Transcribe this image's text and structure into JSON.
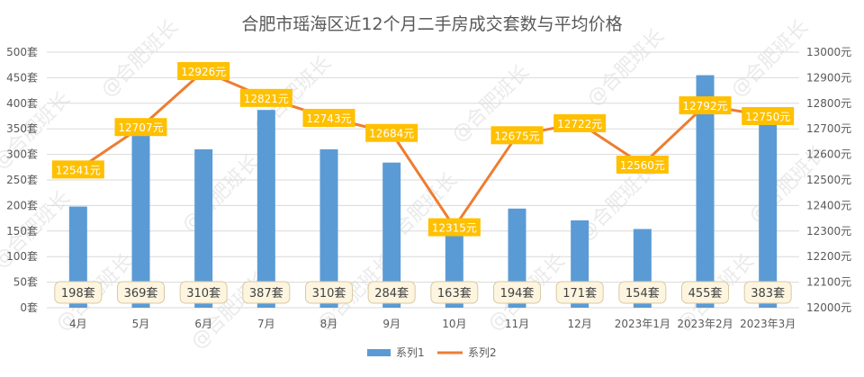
{
  "chart_data": {
    "type": "bar",
    "title": "合肥市瑶海区近12个月二手房成交套数与平均价格",
    "categories": [
      "4月",
      "5月",
      "6月",
      "7月",
      "8月",
      "9月",
      "10月",
      "11月",
      "12月",
      "2023年1月",
      "2023年2月",
      "2023年3月"
    ],
    "series": [
      {
        "name": "系列1",
        "type": "bar",
        "axis": "left",
        "color": "#5b9bd5",
        "values": [
          198,
          369,
          310,
          387,
          310,
          284,
          163,
          194,
          171,
          154,
          455,
          383
        ],
        "labels": [
          "198套",
          "369套",
          "310套",
          "387套",
          "310套",
          "284套",
          "163套",
          "194套",
          "171套",
          "154套",
          "455套",
          "383套"
        ]
      },
      {
        "name": "系列2",
        "type": "line",
        "axis": "right",
        "color": "#ed7d31",
        "values": [
          12541,
          12707,
          12926,
          12821,
          12743,
          12684,
          12315,
          12675,
          12722,
          12560,
          12792,
          12750
        ],
        "labels": [
          "12541元",
          "12707元",
          "12926元",
          "12821元",
          "12743元",
          "12684元",
          "12315元",
          "12675元",
          "12722元",
          "12560元",
          "12792元",
          "12750元"
        ]
      }
    ],
    "y_left": {
      "range": [
        0,
        500
      ],
      "ticks": [
        0,
        50,
        100,
        150,
        200,
        250,
        300,
        350,
        400,
        450,
        500
      ],
      "tick_labels": [
        "0套",
        "50套",
        "100套",
        "150套",
        "200套",
        "250套",
        "300套",
        "350套",
        "400套",
        "450套",
        "500套"
      ]
    },
    "y_right": {
      "range": [
        12000,
        13000
      ],
      "ticks": [
        12000,
        12100,
        12200,
        12300,
        12400,
        12500,
        12600,
        12700,
        12800,
        12900,
        13000
      ],
      "tick_labels": [
        "12000元",
        "12100元",
        "12200元",
        "12300元",
        "12400元",
        "12500元",
        "12600元",
        "12700元",
        "12800元",
        "12900元",
        "13000元"
      ]
    },
    "grid": true,
    "legend": "bottom",
    "watermark": "@合肥班长"
  }
}
